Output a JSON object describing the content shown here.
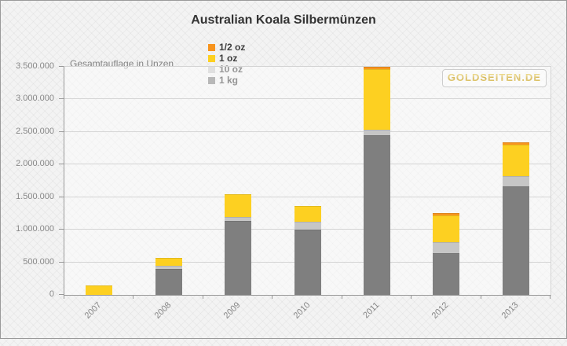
{
  "chart_data": {
    "type": "bar",
    "stacked": true,
    "title": "Australian Koala Silbermünzen",
    "legend_title": "Gesamtauflage in Unzen",
    "legend_position": "top",
    "watermark": "GOLDSEITEN.DE",
    "categories": [
      "2007",
      "2008",
      "2009",
      "2010",
      "2011",
      "2012",
      "2013"
    ],
    "series": [
      {
        "name": "1/2 oz",
        "color": "#f7941e",
        "values": [
          0,
          0,
          0,
          0,
          40000,
          40000,
          40000
        ]
      },
      {
        "name": "1 oz",
        "color": "#fdd021",
        "values": [
          140000,
          120000,
          350000,
          240000,
          920000,
          410000,
          480000
        ]
      },
      {
        "name": "10 oz",
        "color": "#c6c6c6",
        "values": [
          0,
          50000,
          70000,
          120000,
          90000,
          160000,
          160000
        ]
      },
      {
        "name": "1 kg",
        "color": "#7f7f7f",
        "values": [
          0,
          400000,
          1130000,
          1000000,
          2450000,
          645000,
          1660000
        ]
      }
    ],
    "stack_order_bottom_to_top": [
      "1 kg",
      "10 oz",
      "1 oz",
      "1/2 oz"
    ],
    "totals": [
      140000,
      570000,
      1550000,
      1360000,
      3500000,
      1255000,
      2340000
    ],
    "xlabel": "",
    "ylabel": "",
    "ylim": [
      0,
      3500000
    ],
    "ytick_step": 500000,
    "ytick_labels": [
      "0",
      "500.000",
      "1.000.000",
      "1.500.000",
      "2.000.000",
      "2.500.000",
      "3.000.000",
      "3.500.000"
    ],
    "grid": true
  },
  "colors": {
    "background": "#f3f3f3",
    "grid": "#d4d4d4",
    "axis": "#999999",
    "tick_label": "#888888",
    "title": "#333333",
    "legend_title": "#848484",
    "legend_label": "#3d3d3d",
    "watermark_gold": "#c9a227",
    "frame_border": "#9a9a9a"
  }
}
